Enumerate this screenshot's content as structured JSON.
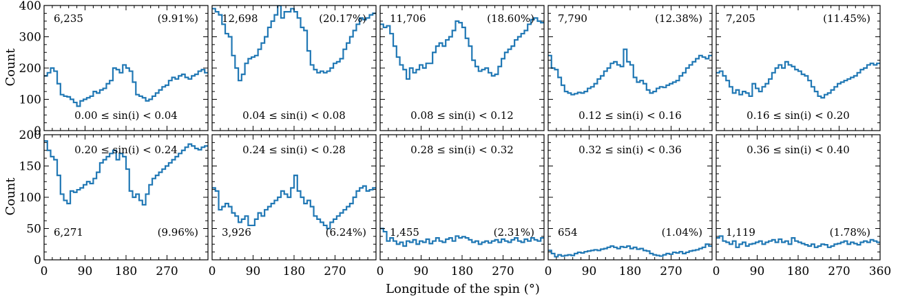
{
  "chart_data": {
    "type": "histogram-grid",
    "xlabel": "Longitude of the spin (°)",
    "ylabel": "Count",
    "x_range": [
      0,
      360
    ],
    "bin_width": 7.2,
    "x_ticks": [
      0,
      90,
      180,
      270,
      360
    ],
    "top_row": {
      "ylim": [
        0,
        400
      ],
      "y_ticks": [
        0,
        100,
        200,
        300,
        400
      ]
    },
    "bottom_row": {
      "ylim": [
        0,
        200
      ],
      "y_ticks": [
        0,
        50,
        100,
        150,
        200
      ]
    },
    "colors": {
      "line": "#1f77b4",
      "axes": "#000000"
    },
    "panels": [
      {
        "id": "p0",
        "row": 0,
        "col": 0,
        "range_label": "0.00 ≤ sin(i) < 0.04",
        "count_label": "6,235",
        "percent_label": "(9.91%)",
        "values": [
          175,
          185,
          200,
          190,
          150,
          115,
          110,
          108,
          100,
          90,
          78,
          95,
          100,
          105,
          110,
          125,
          120,
          130,
          135,
          150,
          160,
          200,
          195,
          185,
          210,
          200,
          190,
          155,
          115,
          110,
          105,
          95,
          100,
          110,
          120,
          130,
          140,
          145,
          160,
          170,
          165,
          175,
          180,
          170,
          165,
          175,
          180,
          190,
          195,
          185
        ]
      },
      {
        "id": "p1",
        "row": 0,
        "col": 1,
        "range_label": "0.04 ≤ sin(i) < 0.08",
        "count_label": "12,698",
        "percent_label": "(20.17%)",
        "values": [
          390,
          380,
          370,
          340,
          310,
          300,
          240,
          200,
          160,
          180,
          215,
          230,
          235,
          240,
          260,
          280,
          300,
          330,
          350,
          370,
          400,
          360,
          380,
          380,
          390,
          380,
          360,
          330,
          320,
          255,
          210,
          195,
          185,
          190,
          185,
          190,
          200,
          215,
          220,
          230,
          260,
          280,
          300,
          320,
          340,
          360,
          355,
          360,
          370,
          375
        ]
      },
      {
        "id": "p2",
        "row": 0,
        "col": 2,
        "range_label": "0.08 ≤ sin(i) < 0.12",
        "count_label": "11,706",
        "percent_label": "(18.60%)",
        "values": [
          340,
          330,
          335,
          310,
          270,
          235,
          210,
          195,
          165,
          200,
          185,
          195,
          210,
          200,
          215,
          215,
          250,
          270,
          280,
          270,
          290,
          300,
          320,
          350,
          345,
          330,
          295,
          270,
          225,
          205,
          190,
          195,
          200,
          185,
          175,
          180,
          205,
          230,
          250,
          260,
          270,
          290,
          300,
          310,
          320,
          340,
          355,
          360,
          350,
          345
        ]
      },
      {
        "id": "p3",
        "row": 0,
        "col": 3,
        "range_label": "0.12 ≤ sin(i) < 0.16",
        "count_label": "7,790",
        "percent_label": "(12.38%)",
        "values": [
          240,
          200,
          195,
          170,
          145,
          125,
          120,
          115,
          118,
          122,
          120,
          125,
          135,
          140,
          150,
          165,
          175,
          190,
          200,
          215,
          220,
          210,
          205,
          260,
          220,
          210,
          170,
          155,
          160,
          150,
          130,
          120,
          125,
          135,
          140,
          138,
          145,
          150,
          155,
          160,
          175,
          185,
          200,
          210,
          220,
          230,
          240,
          235,
          230,
          240
        ]
      },
      {
        "id": "p4",
        "row": 0,
        "col": 4,
        "range_label": "0.16 ≤ sin(i) < 0.20",
        "count_label": "7,205",
        "percent_label": "(11.45%)",
        "values": [
          185,
          190,
          175,
          160,
          140,
          120,
          130,
          115,
          125,
          120,
          110,
          150,
          135,
          125,
          140,
          150,
          165,
          185,
          200,
          210,
          200,
          220,
          210,
          205,
          195,
          190,
          180,
          175,
          160,
          140,
          125,
          110,
          105,
          115,
          120,
          130,
          140,
          150,
          155,
          160,
          165,
          170,
          175,
          185,
          195,
          200,
          210,
          215,
          210,
          215
        ]
      },
      {
        "id": "p5",
        "row": 1,
        "col": 0,
        "range_label": "0.20 ≤ sin(i) < 0.24",
        "count_label": "6,271",
        "percent_label": "(9.96%)",
        "values": [
          190,
          175,
          165,
          160,
          135,
          105,
          95,
          90,
          110,
          108,
          112,
          115,
          120,
          125,
          122,
          130,
          140,
          155,
          160,
          165,
          170,
          175,
          160,
          170,
          165,
          145,
          110,
          100,
          105,
          95,
          88,
          105,
          120,
          130,
          135,
          140,
          145,
          150,
          155,
          160,
          165,
          170,
          175,
          180,
          185,
          182,
          178,
          176,
          180,
          182
        ]
      },
      {
        "id": "p6",
        "row": 1,
        "col": 1,
        "range_label": "0.24 ≤ sin(i) < 0.28",
        "count_label": "3,926",
        "percent_label": "(6.24%)",
        "values": [
          115,
          110,
          80,
          85,
          90,
          85,
          75,
          70,
          60,
          65,
          70,
          55,
          55,
          65,
          75,
          70,
          80,
          85,
          90,
          95,
          100,
          110,
          105,
          100,
          115,
          135,
          110,
          100,
          90,
          95,
          85,
          70,
          65,
          60,
          55,
          50,
          60,
          65,
          70,
          75,
          80,
          85,
          90,
          100,
          110,
          115,
          118,
          110,
          112,
          115
        ]
      },
      {
        "id": "p7",
        "row": 1,
        "col": 2,
        "range_label": "0.28 ≤ sin(i) < 0.32",
        "count_label": "1,455",
        "percent_label": "(2.31%)",
        "values": [
          50,
          45,
          30,
          35,
          30,
          25,
          28,
          22,
          30,
          28,
          32,
          25,
          30,
          28,
          33,
          26,
          30,
          35,
          30,
          28,
          33,
          35,
          30,
          38,
          35,
          37,
          35,
          32,
          28,
          30,
          25,
          28,
          30,
          27,
          30,
          32,
          28,
          33,
          30,
          28,
          32,
          35,
          30,
          28,
          33,
          30,
          35,
          32,
          30,
          35
        ]
      },
      {
        "id": "p8",
        "row": 1,
        "col": 3,
        "range_label": "0.32 ≤ sin(i) < 0.36",
        "count_label": "654",
        "percent_label": "(1.04%)",
        "values": [
          15,
          10,
          5,
          8,
          6,
          7,
          8,
          7,
          10,
          12,
          11,
          13,
          14,
          15,
          16,
          15,
          17,
          18,
          20,
          22,
          20,
          18,
          21,
          20,
          22,
          18,
          20,
          17,
          18,
          15,
          14,
          10,
          8,
          7,
          6,
          8,
          10,
          9,
          12,
          11,
          13,
          10,
          12,
          14,
          15,
          16,
          18,
          20,
          25,
          22
        ]
      },
      {
        "id": "p9",
        "row": 1,
        "col": 4,
        "range_label": "0.36 ≤ sin(i) < 0.40",
        "count_label": "1,119",
        "percent_label": "(1.78%)",
        "values": [
          35,
          38,
          30,
          28,
          25,
          30,
          20,
          25,
          28,
          22,
          25,
          26,
          28,
          30,
          25,
          28,
          30,
          32,
          28,
          33,
          28,
          30,
          25,
          35,
          30,
          28,
          26,
          24,
          22,
          25,
          20,
          22,
          25,
          24,
          20,
          22,
          25,
          26,
          28,
          30,
          25,
          28,
          26,
          24,
          28,
          30,
          28,
          32,
          30,
          28
        ]
      }
    ]
  }
}
